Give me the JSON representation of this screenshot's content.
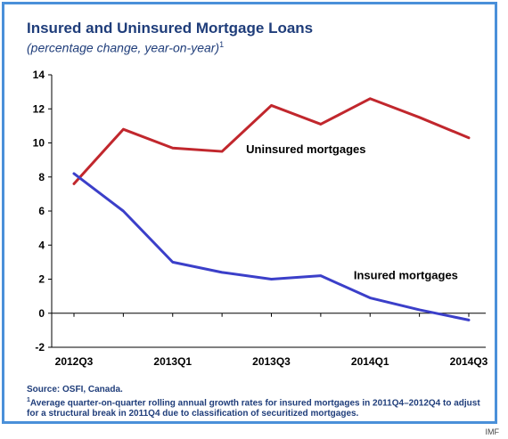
{
  "chart_data": {
    "type": "line",
    "title": "Insured and Uninsured Mortgage Loans",
    "subtitle": "(percentage change, year-on-year)",
    "subtitle_sup": "1",
    "x": [
      "2012Q3",
      "2012Q4",
      "2013Q1",
      "2013Q2",
      "2013Q3",
      "2013Q4",
      "2014Q1",
      "2014Q2",
      "2014Q3"
    ],
    "x_tick_labels": [
      "2012Q3",
      "2013Q1",
      "2013Q3",
      "2014Q1",
      "2014Q3"
    ],
    "ylim": [
      -2,
      14
    ],
    "y_ticks": [
      "-2",
      "0",
      "2",
      "4",
      "6",
      "8",
      "10",
      "12",
      "14"
    ],
    "grid": false,
    "series": [
      {
        "name": "Uninsured mortgages",
        "color": "#c1272d",
        "values": [
          7.6,
          10.8,
          9.7,
          9.5,
          12.2,
          11.1,
          12.6,
          11.5,
          10.3
        ]
      },
      {
        "name": "Insured mortgages",
        "color": "#3b3fc9",
        "values": [
          8.2,
          6.0,
          3.0,
          2.4,
          2.0,
          2.2,
          0.9,
          0.2,
          -0.4
        ]
      }
    ]
  },
  "footnote": {
    "source": "Source: OSFI, Canada.",
    "note_mark": "1",
    "note_text": "Average quarter-on-quarter rolling annual growth rates for insured mortgages in 2011Q4–2012Q4 to adjust for a structural break in 2011Q4 due to classification of securitized mortgages."
  },
  "credit": "IMF"
}
